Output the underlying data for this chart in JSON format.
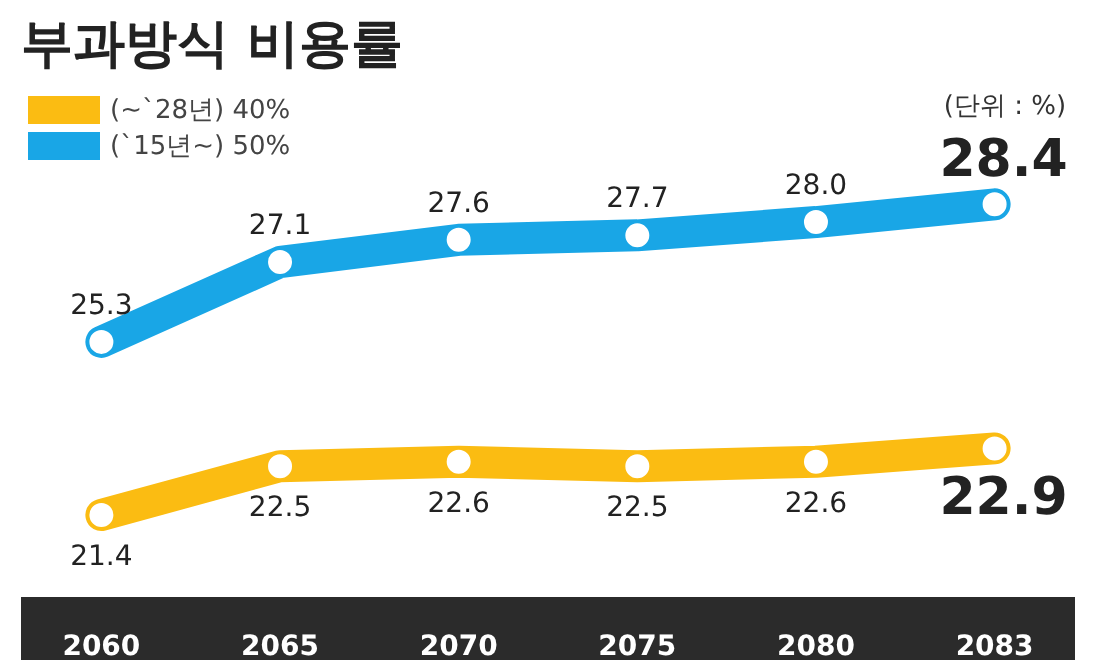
{
  "chart_data": {
    "type": "line",
    "title": "부과방식 비용률",
    "annotations": [
      "(단위 : %)"
    ],
    "categories": [
      "2060",
      "2065",
      "2070",
      "2075",
      "2080",
      "2083"
    ],
    "series": [
      {
        "name": "(~`28년) 40%",
        "color": "#fbbc12",
        "values": [
          21.4,
          22.5,
          22.6,
          22.5,
          22.6,
          22.9
        ],
        "value_labels": [
          "21.4",
          "22.5",
          "22.6",
          "22.5",
          "22.6",
          "22.9"
        ]
      },
      {
        "name": "(`15년~) 50%",
        "color": "#19a6e6",
        "values": [
          25.3,
          27.1,
          27.6,
          27.7,
          28.0,
          28.4
        ],
        "value_labels": [
          "25.3",
          "27.1",
          "27.6",
          "27.7",
          "28.0",
          "28.4"
        ]
      }
    ],
    "marker": "circle",
    "legend": "top left",
    "grid": false
  }
}
